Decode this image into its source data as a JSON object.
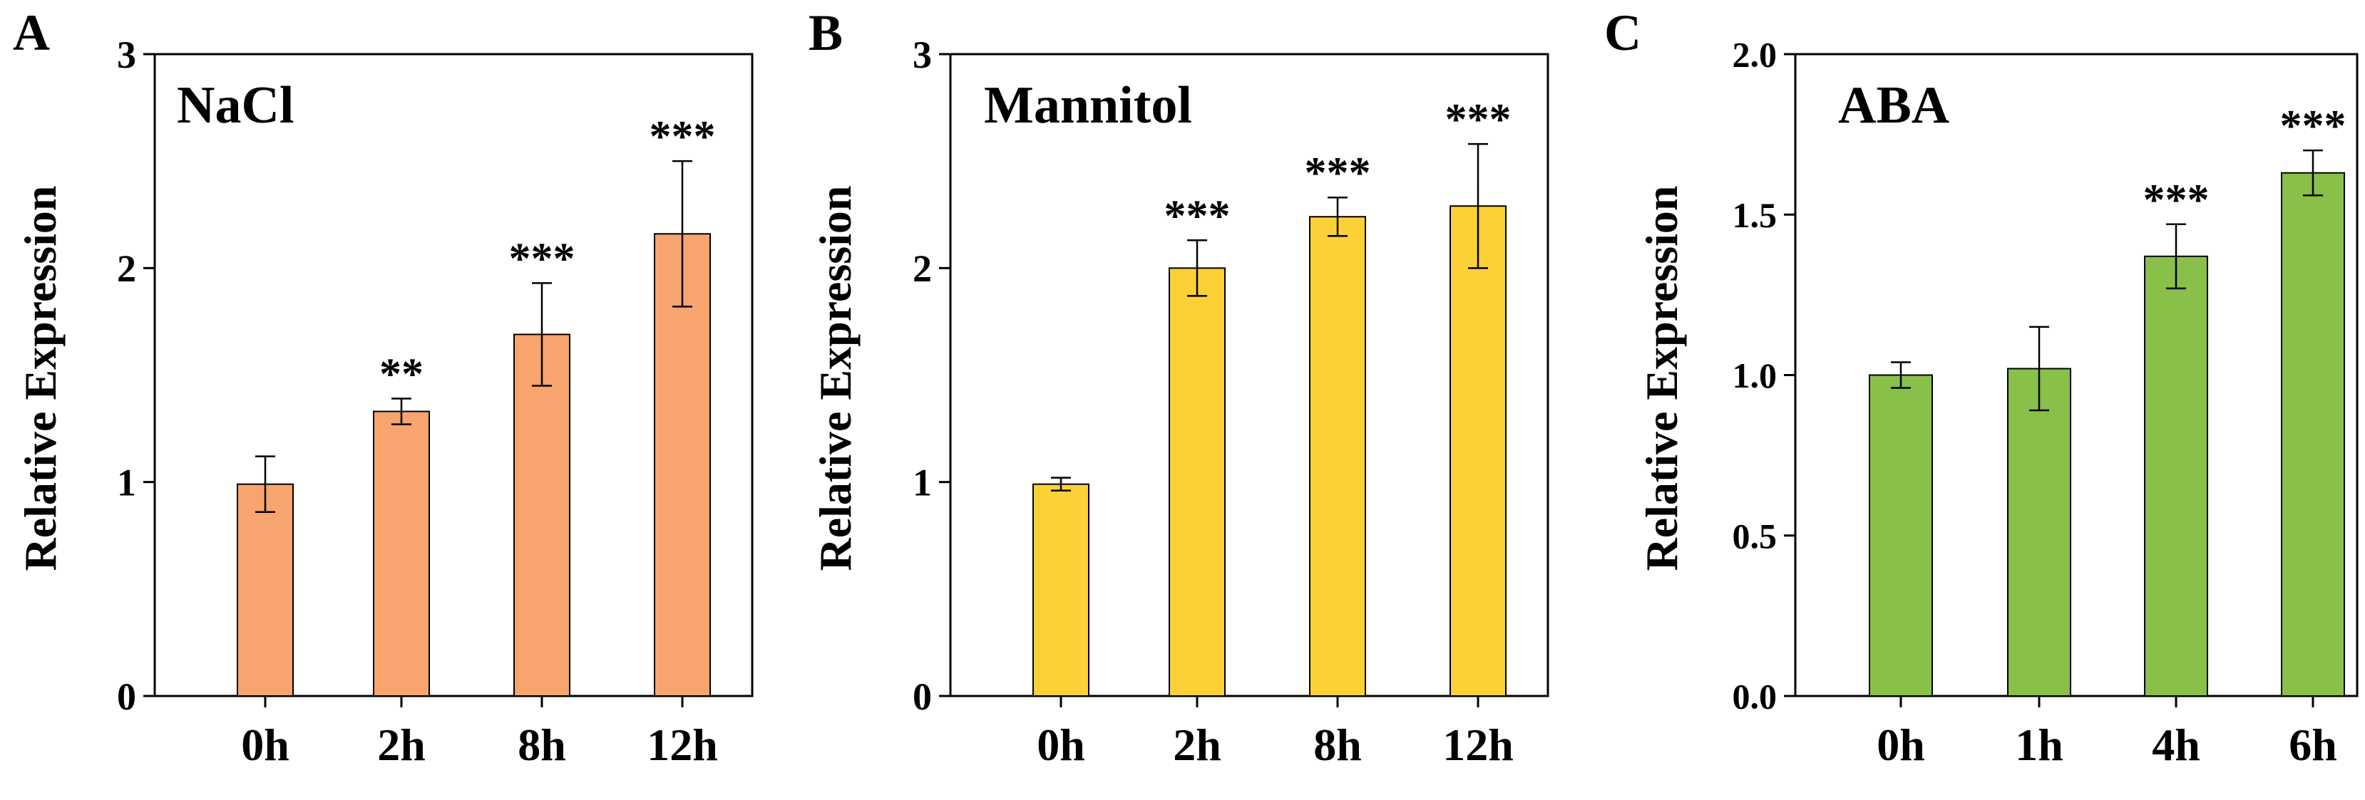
{
  "chart_data": [
    {
      "type": "bar",
      "panel_label": "A",
      "title": "NaCl",
      "xlabel": "",
      "ylabel": "Relative Expression",
      "categories": [
        "0h",
        "2h",
        "8h",
        "12h"
      ],
      "values": [
        0.99,
        1.33,
        1.69,
        2.16
      ],
      "errors": [
        0.13,
        0.06,
        0.24,
        0.34
      ],
      "significance": [
        "",
        "**",
        "***",
        "***"
      ],
      "ylim": [
        0,
        3
      ],
      "yticks": [
        0,
        1,
        2,
        3
      ],
      "ytick_labels": [
        "0",
        "1",
        "2",
        "3"
      ],
      "bar_color": "#f7a46e"
    },
    {
      "type": "bar",
      "panel_label": "B",
      "title": "Mannitol",
      "xlabel": "",
      "ylabel": "Relative Expression",
      "categories": [
        "0h",
        "2h",
        "8h",
        "12h"
      ],
      "values": [
        0.99,
        2.0,
        2.24,
        2.29
      ],
      "errors": [
        0.03,
        0.13,
        0.09,
        0.29
      ],
      "significance": [
        "",
        "***",
        "***",
        "***"
      ],
      "ylim": [
        0,
        3
      ],
      "yticks": [
        0,
        1,
        2,
        3
      ],
      "ytick_labels": [
        "0",
        "1",
        "2",
        "3"
      ],
      "bar_color": "#fcd137"
    },
    {
      "type": "bar",
      "panel_label": "C",
      "title": "ABA",
      "xlabel": "",
      "ylabel": "Relative Expression",
      "categories": [
        "0h",
        "1h",
        "4h",
        "6h"
      ],
      "values": [
        1.0,
        1.02,
        1.37,
        1.63
      ],
      "errors": [
        0.04,
        0.13,
        0.1,
        0.07
      ],
      "significance": [
        "",
        "",
        "***",
        "***"
      ],
      "ylim": [
        0,
        2
      ],
      "yticks": [
        0,
        0.5,
        1,
        1.5,
        2
      ],
      "ytick_labels": [
        "0.0",
        "0.5",
        "1.0",
        "1.5",
        "2.0"
      ],
      "bar_color": "#89c04a"
    }
  ]
}
